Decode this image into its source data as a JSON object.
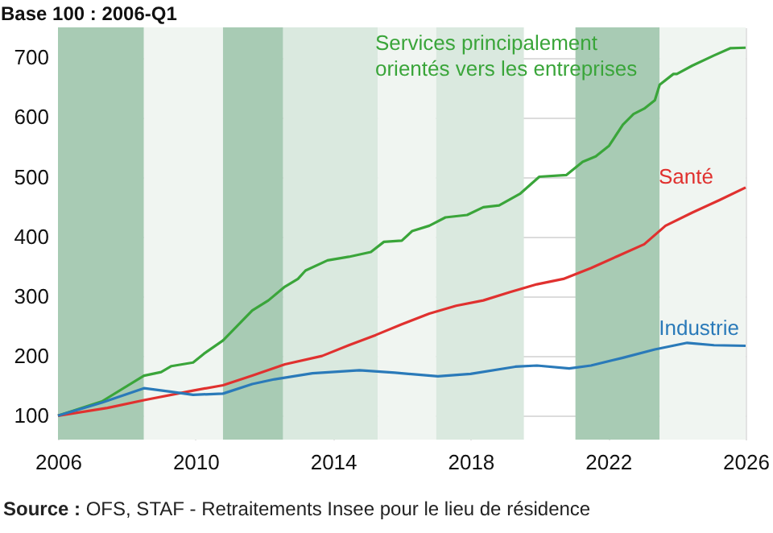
{
  "chart_data": {
    "type": "line",
    "ylabel": "Base 100 : 2006-Q1",
    "annotations": [
      "Source : OFS, STAF - Retraitements Insee pour le lieu de résidence"
    ],
    "xlim": [
      2006,
      2026
    ],
    "xticks": [
      2006,
      2010,
      2014,
      2018,
      2022,
      2026
    ],
    "ylim": [
      60,
      750
    ],
    "yticks": [
      100,
      200,
      300,
      400,
      500,
      600,
      700
    ],
    "grid": true,
    "bands": [
      {
        "axis": "x",
        "from": 2006,
        "to": 2008.5,
        "color": "#a8cbb4"
      },
      {
        "axis": "x",
        "from": 2008.5,
        "to": 2010.8,
        "color": "#f0f5f1"
      },
      {
        "axis": "x",
        "from": 2010.8,
        "to": 2012.55,
        "color": "#a8cbb4"
      },
      {
        "axis": "x",
        "from": 2012.55,
        "to": 2015.3,
        "color": "#dae9df"
      },
      {
        "axis": "x",
        "from": 2015.3,
        "to": 2017,
        "color": "#f0f5f1"
      },
      {
        "axis": "x",
        "from": 2017,
        "to": 2019.55,
        "color": "#dae9df"
      },
      {
        "axis": "x",
        "from": 2021.05,
        "to": 2023.5,
        "color": "#a8cbb4"
      },
      {
        "axis": "x",
        "from": 2023.5,
        "to": 2026,
        "color": "#f0f5f1"
      }
    ],
    "series": [
      {
        "name": "Services principalement\norientés vers les entreprises",
        "color": "#3aa53a",
        "x": [
          2006,
          2007.28,
          2008.5,
          2009.0,
          2009.3,
          2009.93,
          2010.25,
          2010.8,
          2011.65,
          2012.12,
          2012.6,
          2012.98,
          2013.2,
          2013.84,
          2014.46,
          2015.1,
          2015.48,
          2016.0,
          2016.3,
          2016.8,
          2017.27,
          2017.9,
          2018.37,
          2018.83,
          2019.45,
          2020.0,
          2020.79,
          2021.26,
          2021.64,
          2022.03,
          2022.43,
          2022.74,
          2023.05,
          2023.36,
          2023.5,
          2023.9,
          2024.0,
          2024.45,
          2025.08,
          2025.55,
          2026
        ],
        "values": [
          100,
          124,
          167,
          173,
          183,
          189,
          204,
          226,
          276,
          293,
          316,
          329,
          343,
          360,
          366,
          374,
          391,
          393,
          409,
          418,
          432,
          436,
          449,
          452,
          472,
          500,
          503,
          525,
          534,
          552,
          587,
          605,
          614,
          628,
          654,
          672,
          672,
          686,
          703,
          715,
          716
        ]
      },
      {
        "name": "Santé",
        "color": "#e0312f",
        "x": [
          2006,
          2007.44,
          2008.5,
          2009.93,
          2010.8,
          2011.65,
          2012.6,
          2013.68,
          2014.46,
          2015.24,
          2016.0,
          2016.8,
          2017.58,
          2018.37,
          2019.15,
          2019.93,
          2020.7,
          2021.5,
          2022.27,
          2023.05,
          2023.67,
          2024.45,
          2025.24,
          2026
        ],
        "values": [
          100,
          113,
          126,
          142,
          151,
          167,
          186,
          200,
          218,
          235,
          253,
          271,
          284,
          293,
          307,
          320,
          329,
          347,
          367,
          387,
          418,
          440,
          461,
          482
        ]
      },
      {
        "name": "Industrie",
        "color": "#2a7ab9",
        "x": [
          2006,
          2007.28,
          2008.5,
          2009.3,
          2009.93,
          2010.8,
          2011.65,
          2012.3,
          2013.4,
          2014.77,
          2015.8,
          2017.05,
          2018.0,
          2019.3,
          2019.93,
          2020.87,
          2021.5,
          2022.43,
          2023.36,
          2024.3,
          2025.08,
          2026
        ],
        "values": [
          100,
          122,
          146,
          140,
          135,
          137,
          153,
          161,
          171,
          176,
          172,
          166,
          170,
          182,
          184,
          179,
          184,
          197,
          211,
          222,
          218,
          217
        ]
      }
    ]
  }
}
